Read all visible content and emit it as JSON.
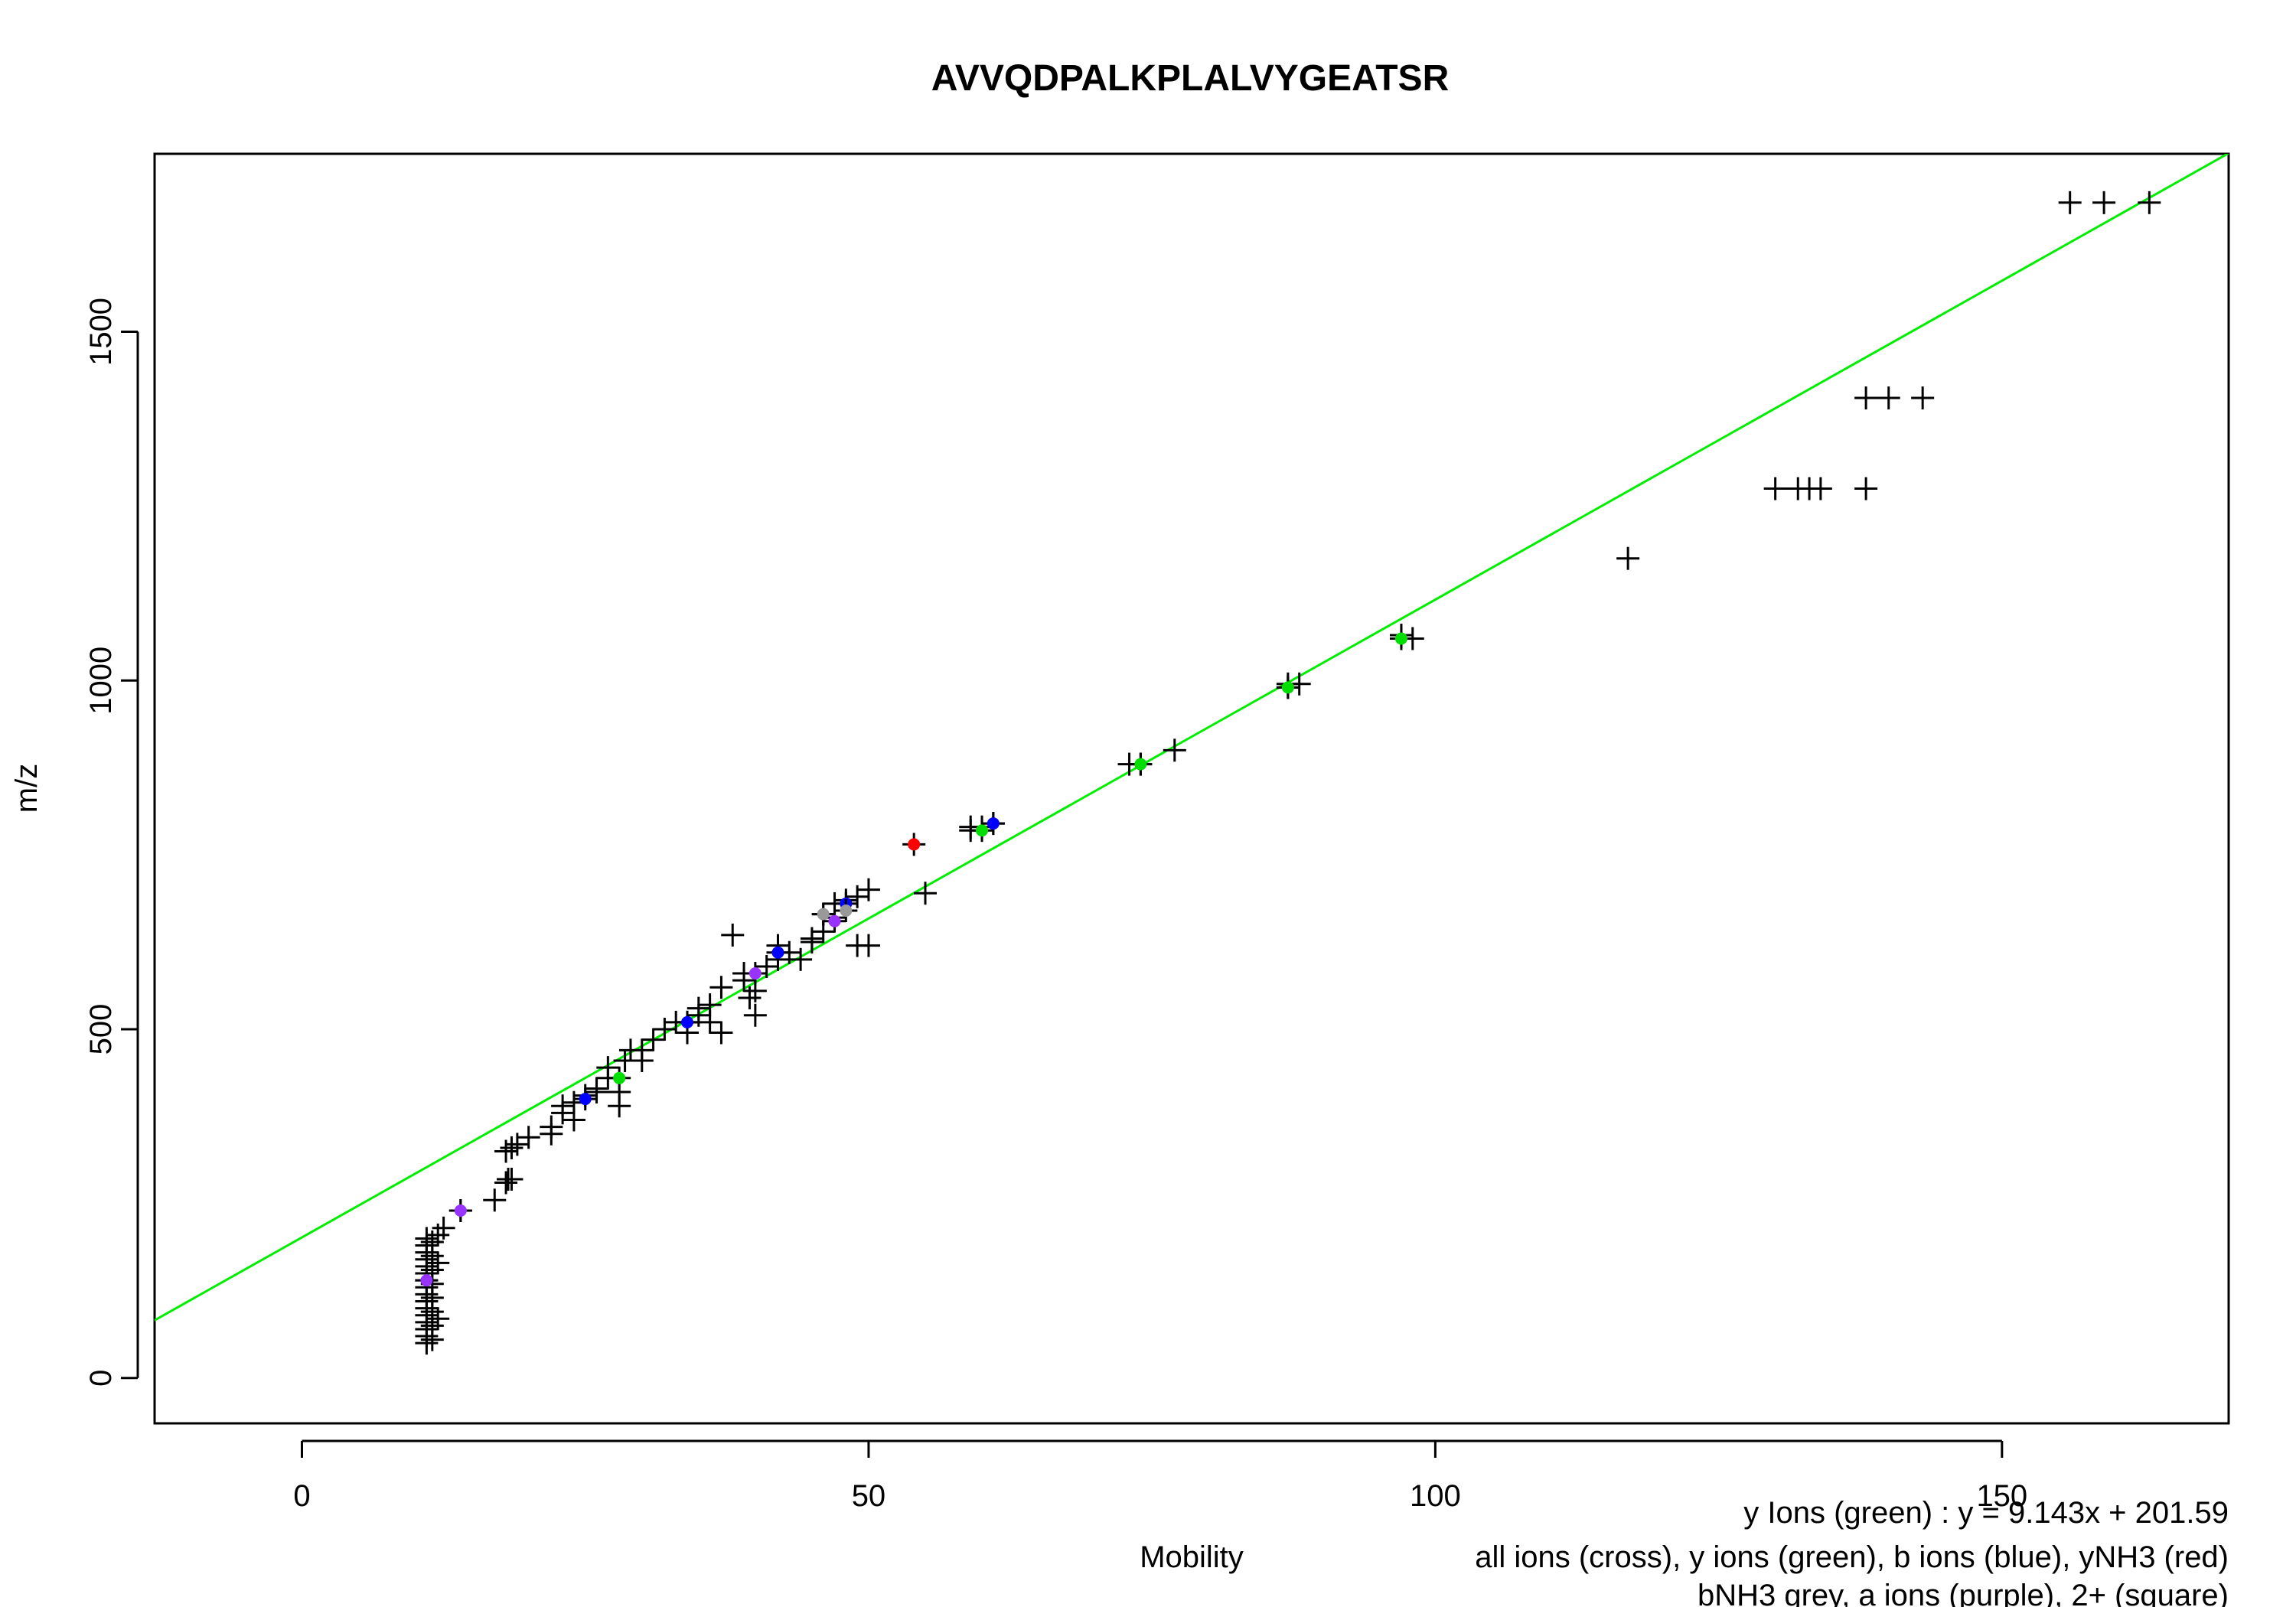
{
  "chart_data": {
    "type": "scatter",
    "title": "AVVQDPALKPLALVYGEATSR",
    "xlabel": "Mobility",
    "ylabel": "m/z",
    "xlim": [
      -13,
      170
    ],
    "ylim": [
      -65,
      1755
    ],
    "xticks": [
      0,
      50,
      100,
      150
    ],
    "yticks": [
      0,
      500,
      1000,
      1500
    ],
    "grid": false,
    "colors": {
      "all": "#000000",
      "y": "#00dd00",
      "b": "#0000ff",
      "yNH3": "#ff0000",
      "bNH3": "#999999",
      "a": "#9933ff",
      "fit": "#00ee00"
    },
    "fit_line": {
      "slope": 9.143,
      "intercept": 201.59
    },
    "annotations": [
      "y Ions (green) : y = 9.143x + 201.59",
      "all ions (cross), y ions (green), b ions (blue), yNH3 (red)",
      "bNH3 grey, a ions (purple), 2+ (square)"
    ],
    "series": [
      {
        "marker": "cross",
        "color": "#000000",
        "points": [
          [
            11,
            50
          ],
          [
            11,
            60
          ],
          [
            11,
            70
          ],
          [
            11,
            80
          ],
          [
            11,
            90
          ],
          [
            11,
            100
          ],
          [
            11,
            110
          ],
          [
            11,
            120
          ],
          [
            11,
            130
          ],
          [
            11,
            140
          ],
          [
            11,
            150
          ],
          [
            11,
            160
          ],
          [
            11,
            170
          ],
          [
            11,
            180
          ],
          [
            11,
            190
          ],
          [
            11,
            200
          ],
          [
            11.5,
            55
          ],
          [
            11.5,
            75
          ],
          [
            11.5,
            95
          ],
          [
            11.5,
            115
          ],
          [
            11.5,
            135
          ],
          [
            11.5,
            155
          ],
          [
            11.5,
            175
          ],
          [
            11.5,
            195
          ],
          [
            12,
            85
          ],
          [
            12,
            165
          ],
          [
            12,
            205
          ],
          [
            12.5,
            215
          ],
          [
            14,
            240
          ],
          [
            17,
            255
          ],
          [
            18,
            280
          ],
          [
            18.2,
            285
          ],
          [
            18.5,
            285
          ],
          [
            18,
            325
          ],
          [
            18.5,
            330
          ],
          [
            19,
            335
          ],
          [
            20,
            345
          ],
          [
            22,
            350
          ],
          [
            22,
            360
          ],
          [
            23,
            380
          ],
          [
            23,
            390
          ],
          [
            24,
            395
          ],
          [
            24,
            370
          ],
          [
            25,
            405
          ],
          [
            26,
            410
          ],
          [
            26,
            415
          ],
          [
            27,
            430
          ],
          [
            27,
            445
          ],
          [
            28,
            390
          ],
          [
            28,
            410
          ],
          [
            28.5,
            455
          ],
          [
            29,
            470
          ],
          [
            30,
            455
          ],
          [
            30,
            470
          ],
          [
            31,
            485
          ],
          [
            32,
            500
          ],
          [
            33,
            510
          ],
          [
            34,
            495
          ],
          [
            34,
            510
          ],
          [
            35,
            520
          ],
          [
            35,
            530
          ],
          [
            36,
            535
          ],
          [
            36,
            510
          ],
          [
            37,
            495
          ],
          [
            37,
            560
          ],
          [
            38,
            635
          ],
          [
            39,
            570
          ],
          [
            39,
            580
          ],
          [
            39.5,
            545
          ],
          [
            40,
            520
          ],
          [
            40,
            555
          ],
          [
            41,
            590
          ],
          [
            42,
            600
          ],
          [
            42,
            620
          ],
          [
            43,
            610
          ],
          [
            44,
            600
          ],
          [
            45,
            630
          ],
          [
            45,
            625
          ],
          [
            46,
            640
          ],
          [
            46,
            665
          ],
          [
            47,
            680
          ],
          [
            47,
            660
          ],
          [
            48,
            685
          ],
          [
            49,
            690
          ],
          [
            49,
            620
          ],
          [
            50,
            620
          ],
          [
            50,
            700
          ],
          [
            55,
            695
          ],
          [
            59,
            785
          ],
          [
            59,
            790
          ],
          [
            60,
            790
          ],
          [
            61,
            795
          ],
          [
            73,
            880
          ],
          [
            74,
            880
          ],
          [
            77,
            900
          ],
          [
            87,
            990
          ],
          [
            87,
            995
          ],
          [
            88,
            995
          ],
          [
            97,
            1065
          ],
          [
            98,
            1060
          ],
          [
            117,
            1175
          ],
          [
            130,
            1275
          ],
          [
            132,
            1275
          ],
          [
            133,
            1275
          ],
          [
            134,
            1275
          ],
          [
            138,
            1275
          ],
          [
            138,
            1405
          ],
          [
            140,
            1405
          ],
          [
            143,
            1405
          ],
          [
            156,
            1685
          ],
          [
            159,
            1685
          ],
          [
            163,
            1685
          ]
        ]
      },
      {
        "marker": "dot",
        "color": "#00dd00",
        "name": "y ions",
        "points": [
          [
            28,
            430
          ],
          [
            60,
            785
          ],
          [
            74,
            880
          ],
          [
            87,
            990
          ],
          [
            97,
            1060
          ]
        ]
      },
      {
        "marker": "dot",
        "color": "#0000ff",
        "name": "b ions",
        "points": [
          [
            25,
            400
          ],
          [
            34,
            510
          ],
          [
            42,
            610
          ],
          [
            48,
            680
          ],
          [
            61,
            795
          ]
        ]
      },
      {
        "marker": "dot",
        "color": "#ff0000",
        "name": "yNH3",
        "points": [
          [
            54,
            765
          ]
        ]
      },
      {
        "marker": "dot",
        "color": "#999999",
        "name": "bNH3",
        "points": [
          [
            46,
            665
          ],
          [
            48,
            670
          ]
        ]
      },
      {
        "marker": "dot",
        "color": "#9933ff",
        "name": "a ions",
        "points": [
          [
            11,
            140
          ],
          [
            14,
            240
          ],
          [
            40,
            580
          ],
          [
            47,
            655
          ]
        ]
      }
    ]
  }
}
